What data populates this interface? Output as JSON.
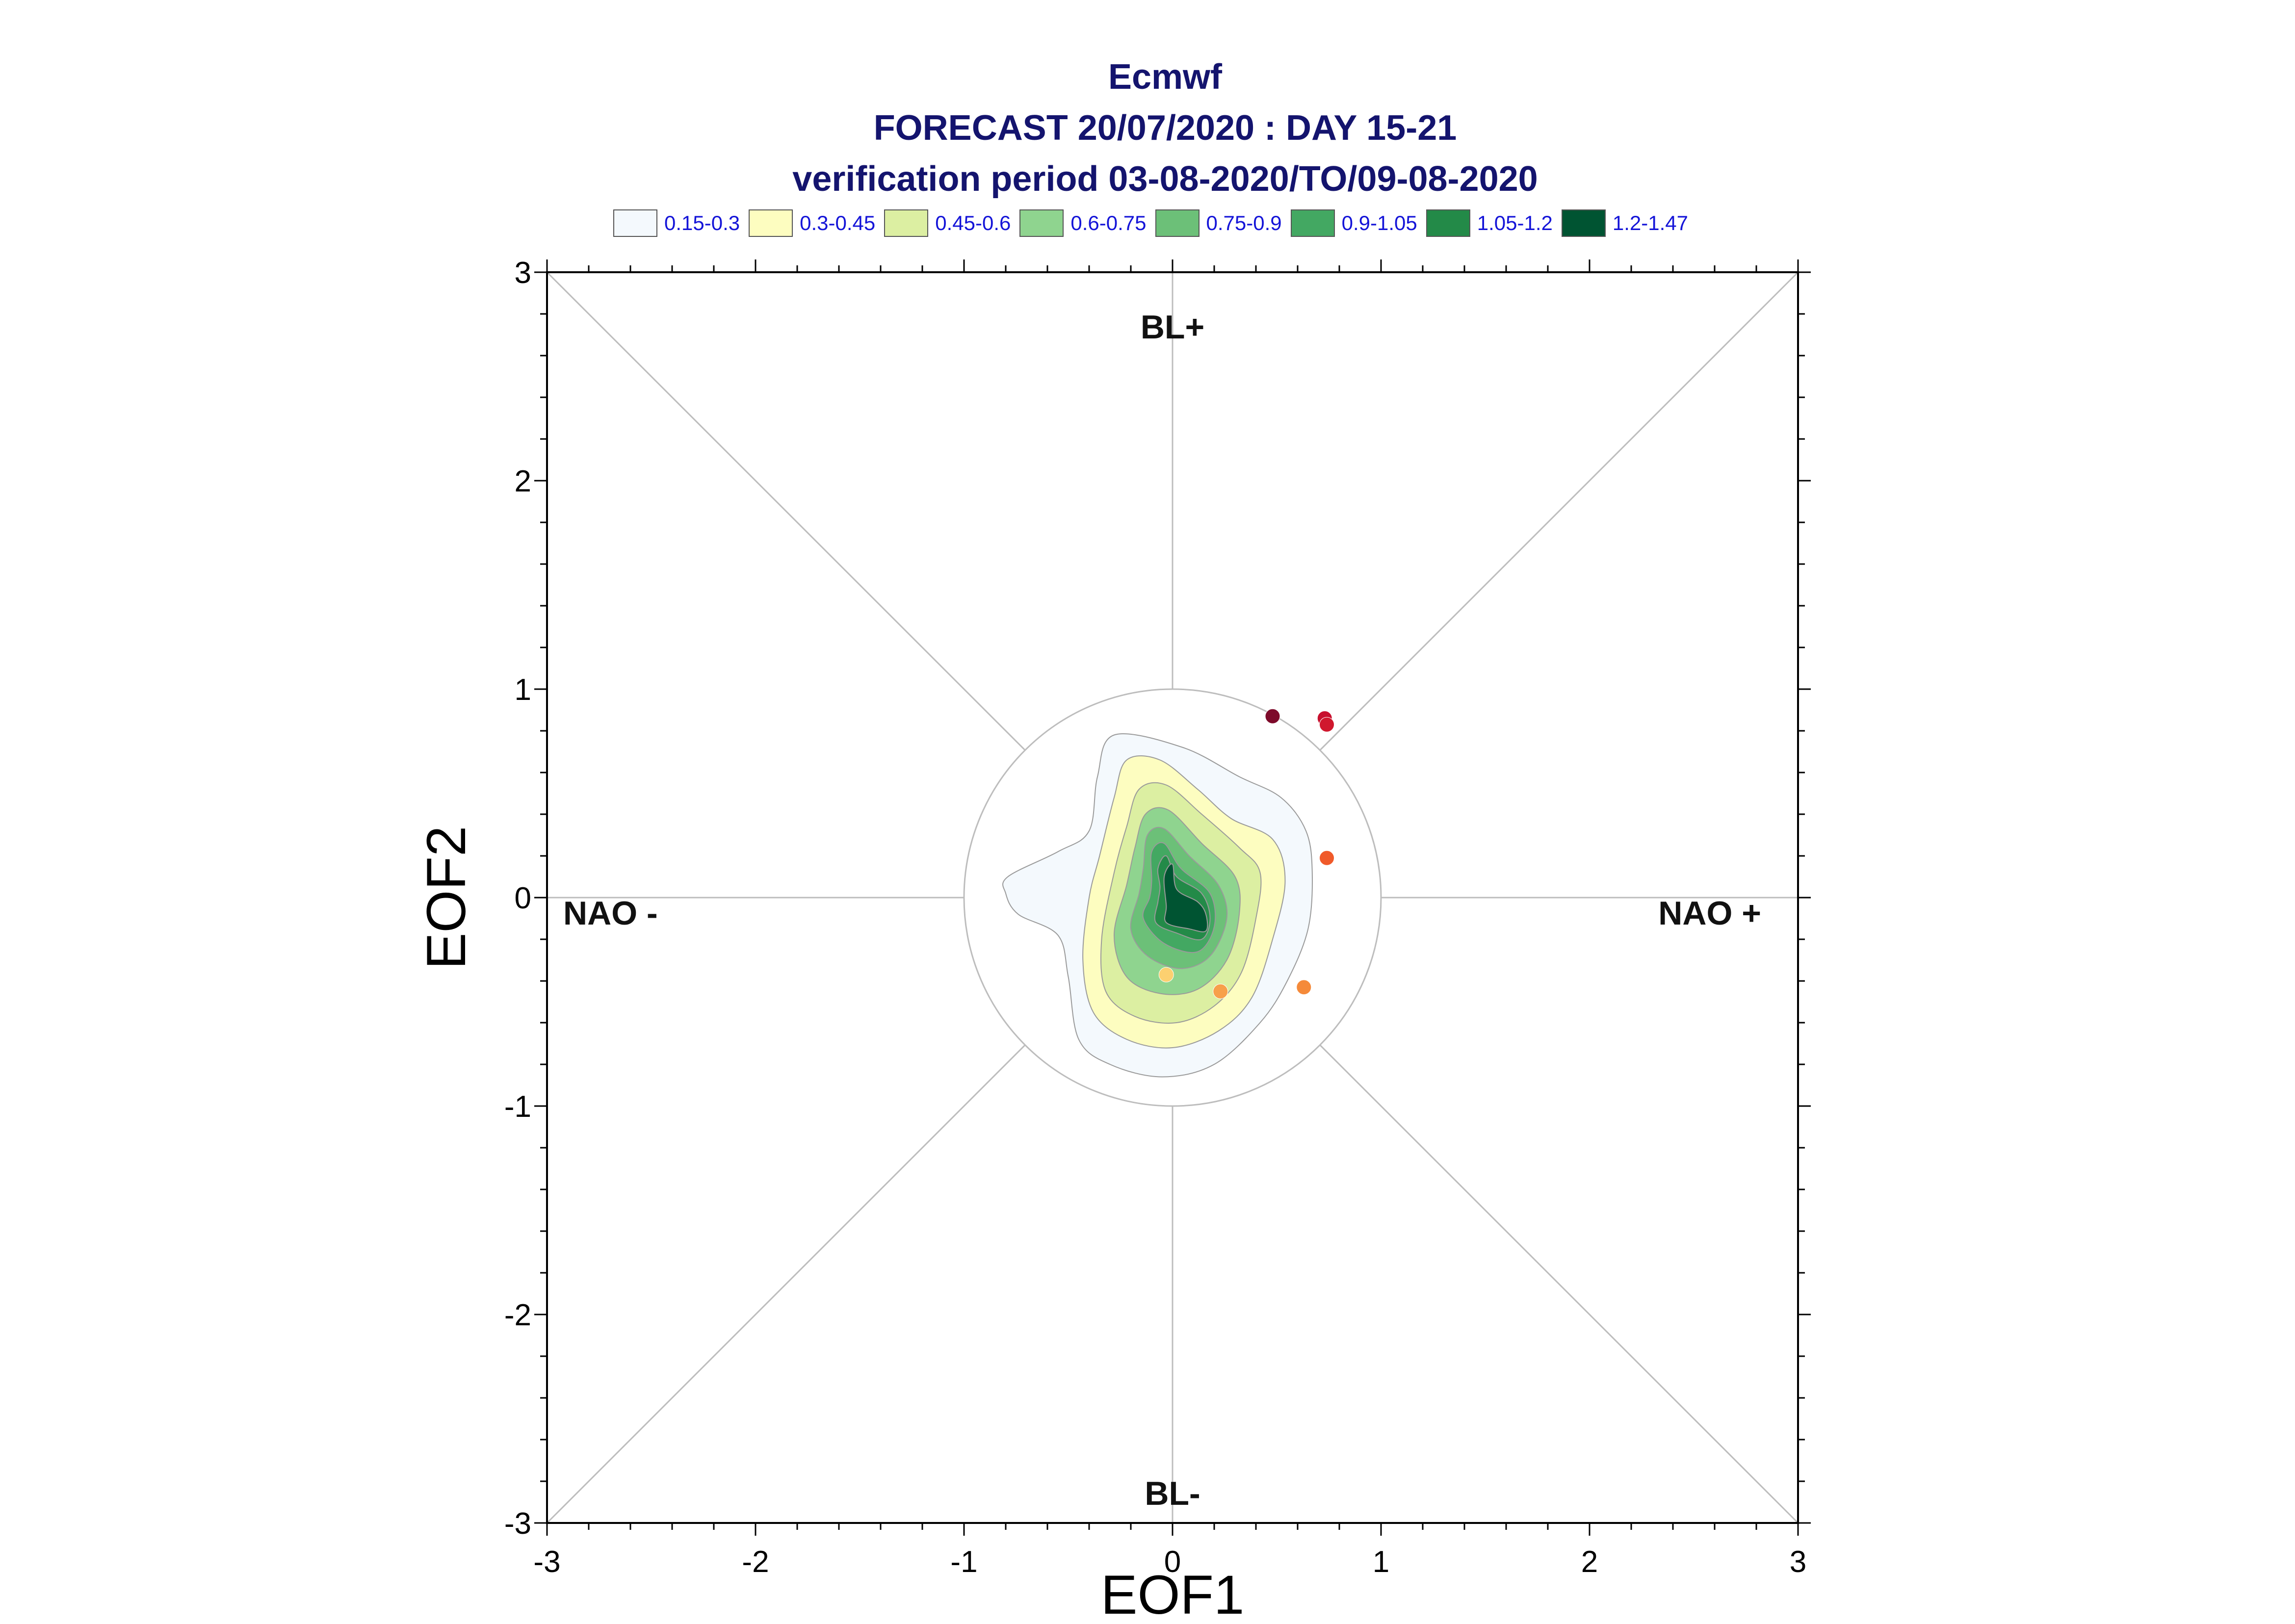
{
  "title_lines": [
    "Ecmwf",
    "FORECAST 20/07/2020 : DAY 15-21",
    "verification period 03-08-2020/TO/09-08-2020"
  ],
  "legend": [
    {
      "label": "0.15-0.3",
      "color": "#f4f9fd"
    },
    {
      "label": "0.3-0.45",
      "color": "#fdfdc0"
    },
    {
      "label": "0.45-0.6",
      "color": "#dcefa2"
    },
    {
      "label": "0.6-0.75",
      "color": "#8fd48f"
    },
    {
      "label": "0.75-0.9",
      "color": "#6cc078"
    },
    {
      "label": "0.9-1.05",
      "color": "#43a862"
    },
    {
      "label": "1.05-1.2",
      "color": "#238a48"
    },
    {
      "label": "1.2-1.47",
      "color": "#005432"
    }
  ],
  "chart_data": {
    "type": "scatter",
    "xlabel": "EOF1",
    "ylabel": "EOF2",
    "xlim": [
      -3,
      3
    ],
    "ylim": [
      -3,
      3
    ],
    "xticks": [
      "-3",
      "-2",
      "-1",
      "0",
      "1",
      "2",
      "3"
    ],
    "yticks": [
      "-3",
      "-2",
      "-1",
      "0",
      "1",
      "2",
      "3"
    ],
    "regime_labels": {
      "top": "BL+",
      "bottom": "BL-",
      "left": "NAO -",
      "right": "NAO +"
    },
    "reference_circle_radius": 1.0,
    "density_levels": [
      0.15,
      0.3,
      0.45,
      0.6,
      0.75,
      0.9,
      1.05,
      1.2
    ],
    "points": [
      {
        "x": 0.48,
        "y": 0.87,
        "color": "#7d0a2a"
      },
      {
        "x": 0.73,
        "y": 0.86,
        "color": "#c8102e"
      },
      {
        "x": 0.74,
        "y": 0.83,
        "color": "#d0182e"
      },
      {
        "x": 0.74,
        "y": 0.19,
        "color": "#f05a2a"
      },
      {
        "x": 0.63,
        "y": -0.43,
        "color": "#f58a3a"
      },
      {
        "x": 0.23,
        "y": -0.45,
        "color": "#f7a04a"
      },
      {
        "x": -0.03,
        "y": -0.37,
        "color": "#fcd070"
      }
    ]
  }
}
